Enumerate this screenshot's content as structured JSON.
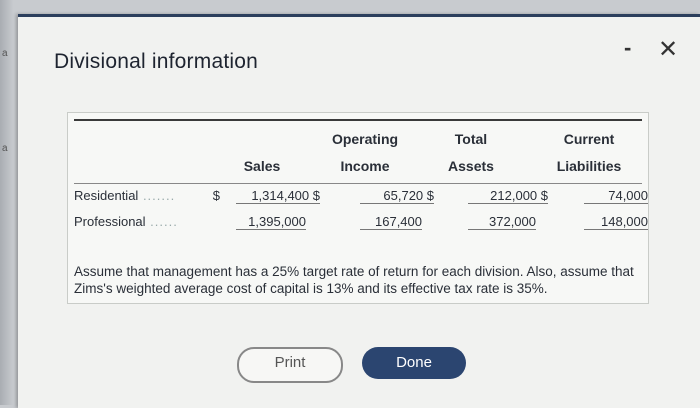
{
  "dialog": {
    "title": "Divisional information",
    "minimize_label": "-",
    "close_label": "✕"
  },
  "table": {
    "headers": {
      "sales": "Sales",
      "operating_income_1": "Operating",
      "operating_income_2": "Income",
      "total_assets_1": "Total",
      "total_assets_2": "Assets",
      "current_liabilities_1": "Current",
      "current_liabilities_2": "Liabilities"
    },
    "rows": [
      {
        "label": "Residential",
        "dollar": "$",
        "sales": "1,314,400 $",
        "operating_income": "65,720 $",
        "total_assets": "212,000 $",
        "current_liabilities": "74,000"
      },
      {
        "label": "Professional",
        "dollar": "",
        "sales": "1,395,000",
        "operating_income": "167,400",
        "total_assets": "372,000",
        "current_liabilities": "148,000"
      }
    ]
  },
  "note": "Assume that management has a 25% target rate of return for each division. Also, assume that Zims's weighted average cost of capital is 13% and its effective tax rate is 35%.",
  "buttons": {
    "print_label": "Print",
    "done_label": "Done"
  }
}
